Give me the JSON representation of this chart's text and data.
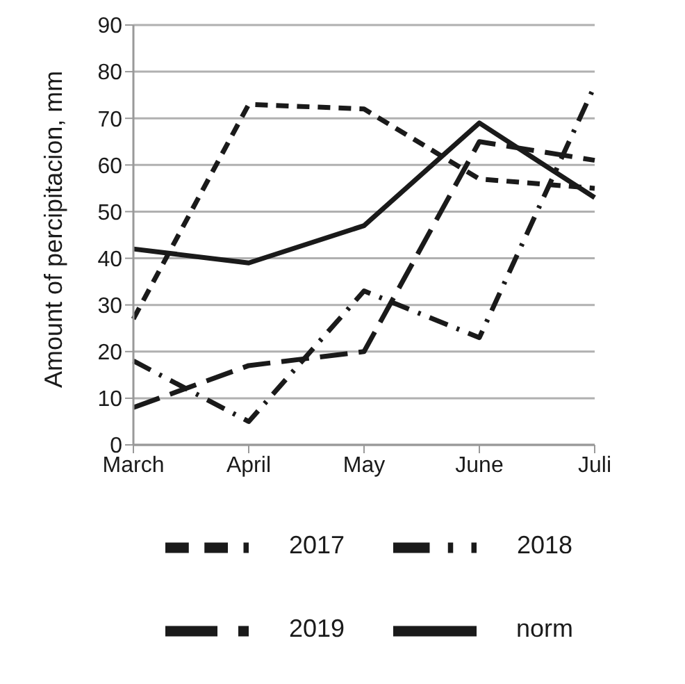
{
  "chart_data": {
    "type": "line",
    "ylabel": "Amount of percipitacion, mm",
    "categories": [
      "March",
      "April",
      "May",
      "June",
      "Juli"
    ],
    "series": [
      {
        "name": "2017",
        "color": "#1a1a1a",
        "line_style": "dashed",
        "values": [
          27,
          73,
          72,
          57,
          55
        ]
      },
      {
        "name": "2018",
        "color": "#1a1a1a",
        "line_style": "dashdot",
        "values": [
          18,
          5,
          33,
          23,
          77
        ]
      },
      {
        "name": "2019",
        "color": "#1a1a1a",
        "line_style": "longdash",
        "values": [
          8,
          17,
          20,
          65,
          61
        ]
      },
      {
        "name": "norm",
        "color": "#1a1a1a",
        "line_style": "solid",
        "values": [
          42,
          39,
          47,
          69,
          53
        ]
      }
    ],
    "ylim": [
      0,
      90
    ],
    "yticks": [
      0,
      10,
      20,
      30,
      40,
      50,
      60,
      70,
      80,
      90
    ],
    "grid": "y",
    "legend": "bottom",
    "marker": "none"
  }
}
